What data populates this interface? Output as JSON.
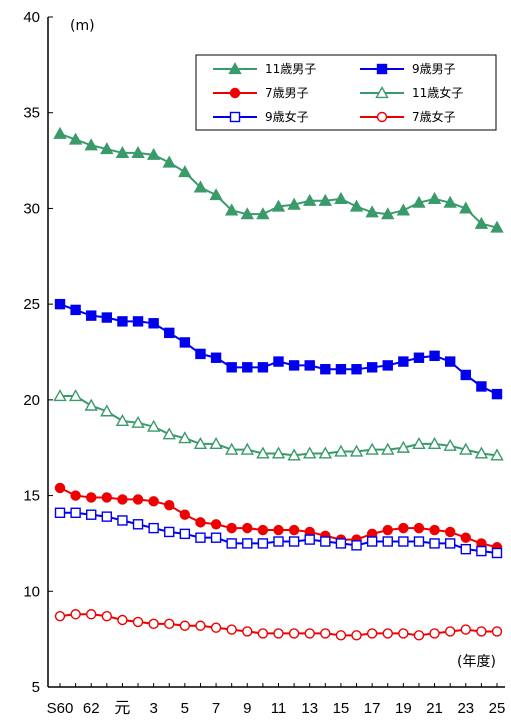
{
  "chart_data": {
    "type": "line",
    "title": "",
    "xlabel": "(年度)",
    "ylabel": "(m)",
    "ylim": [
      5,
      40
    ],
    "yticks": [
      "5",
      "10",
      "15",
      "20",
      "25",
      "30",
      "35",
      "40"
    ],
    "grid": false,
    "legend_position": "top-right",
    "x_tick_labels": [
      "S60",
      "62",
      "元",
      "3",
      "5",
      "7",
      "9",
      "11",
      "13",
      "15",
      "17",
      "19",
      "21",
      "23",
      "25"
    ],
    "series": [
      {
        "name": "11歳男子",
        "color": "#3a9a6a",
        "marker": "triangle-filled",
        "values": [
          33.9,
          33.6,
          33.3,
          33.1,
          32.9,
          32.9,
          32.8,
          32.4,
          31.9,
          31.1,
          30.7,
          29.9,
          29.7,
          29.7,
          30.1,
          30.2,
          30.4,
          30.4,
          30.5,
          30.1,
          29.8,
          29.7,
          29.9,
          30.3,
          30.5,
          30.3,
          30.0,
          29.2,
          29.0
        ]
      },
      {
        "name": "9歳男子",
        "color": "#0000ee",
        "marker": "square-filled",
        "values": [
          25.0,
          24.7,
          24.4,
          24.3,
          24.1,
          24.1,
          24.0,
          23.5,
          23.0,
          22.4,
          22.2,
          21.7,
          21.7,
          21.7,
          22.0,
          21.8,
          21.8,
          21.6,
          21.6,
          21.6,
          21.7,
          21.8,
          22.0,
          22.2,
          22.3,
          22.0,
          21.3,
          20.7,
          20.3
        ]
      },
      {
        "name": "7歳男子",
        "color": "#ee0000",
        "marker": "circle-filled",
        "values": [
          15.4,
          15.0,
          14.9,
          14.9,
          14.8,
          14.8,
          14.7,
          14.5,
          14.0,
          13.6,
          13.5,
          13.3,
          13.3,
          13.2,
          13.2,
          13.2,
          13.1,
          12.9,
          12.7,
          12.7,
          13.0,
          13.2,
          13.3,
          13.3,
          13.2,
          13.1,
          12.8,
          12.5,
          12.3
        ]
      },
      {
        "name": "11歳女子",
        "color": "#3a9a6a",
        "marker": "triangle-open",
        "values": [
          20.2,
          20.2,
          19.7,
          19.4,
          18.9,
          18.8,
          18.6,
          18.2,
          18.0,
          17.7,
          17.7,
          17.4,
          17.4,
          17.2,
          17.2,
          17.1,
          17.2,
          17.2,
          17.3,
          17.3,
          17.4,
          17.4,
          17.5,
          17.7,
          17.7,
          17.6,
          17.4,
          17.2,
          17.1
        ]
      },
      {
        "name": "9歳女子",
        "color": "#0000ee",
        "marker": "square-open",
        "values": [
          14.1,
          14.1,
          14.0,
          13.9,
          13.7,
          13.5,
          13.3,
          13.1,
          13.0,
          12.8,
          12.8,
          12.5,
          12.5,
          12.5,
          12.6,
          12.6,
          12.7,
          12.6,
          12.5,
          12.4,
          12.6,
          12.6,
          12.6,
          12.6,
          12.5,
          12.5,
          12.2,
          12.1,
          12.0
        ]
      },
      {
        "name": "7歳女子",
        "color": "#ee0000",
        "marker": "circle-open",
        "values": [
          8.7,
          8.8,
          8.8,
          8.7,
          8.5,
          8.4,
          8.3,
          8.3,
          8.2,
          8.2,
          8.1,
          8.0,
          7.9,
          7.8,
          7.8,
          7.8,
          7.8,
          7.8,
          7.7,
          7.7,
          7.8,
          7.8,
          7.8,
          7.7,
          7.8,
          7.9,
          8.0,
          7.9,
          7.9
        ]
      }
    ]
  }
}
